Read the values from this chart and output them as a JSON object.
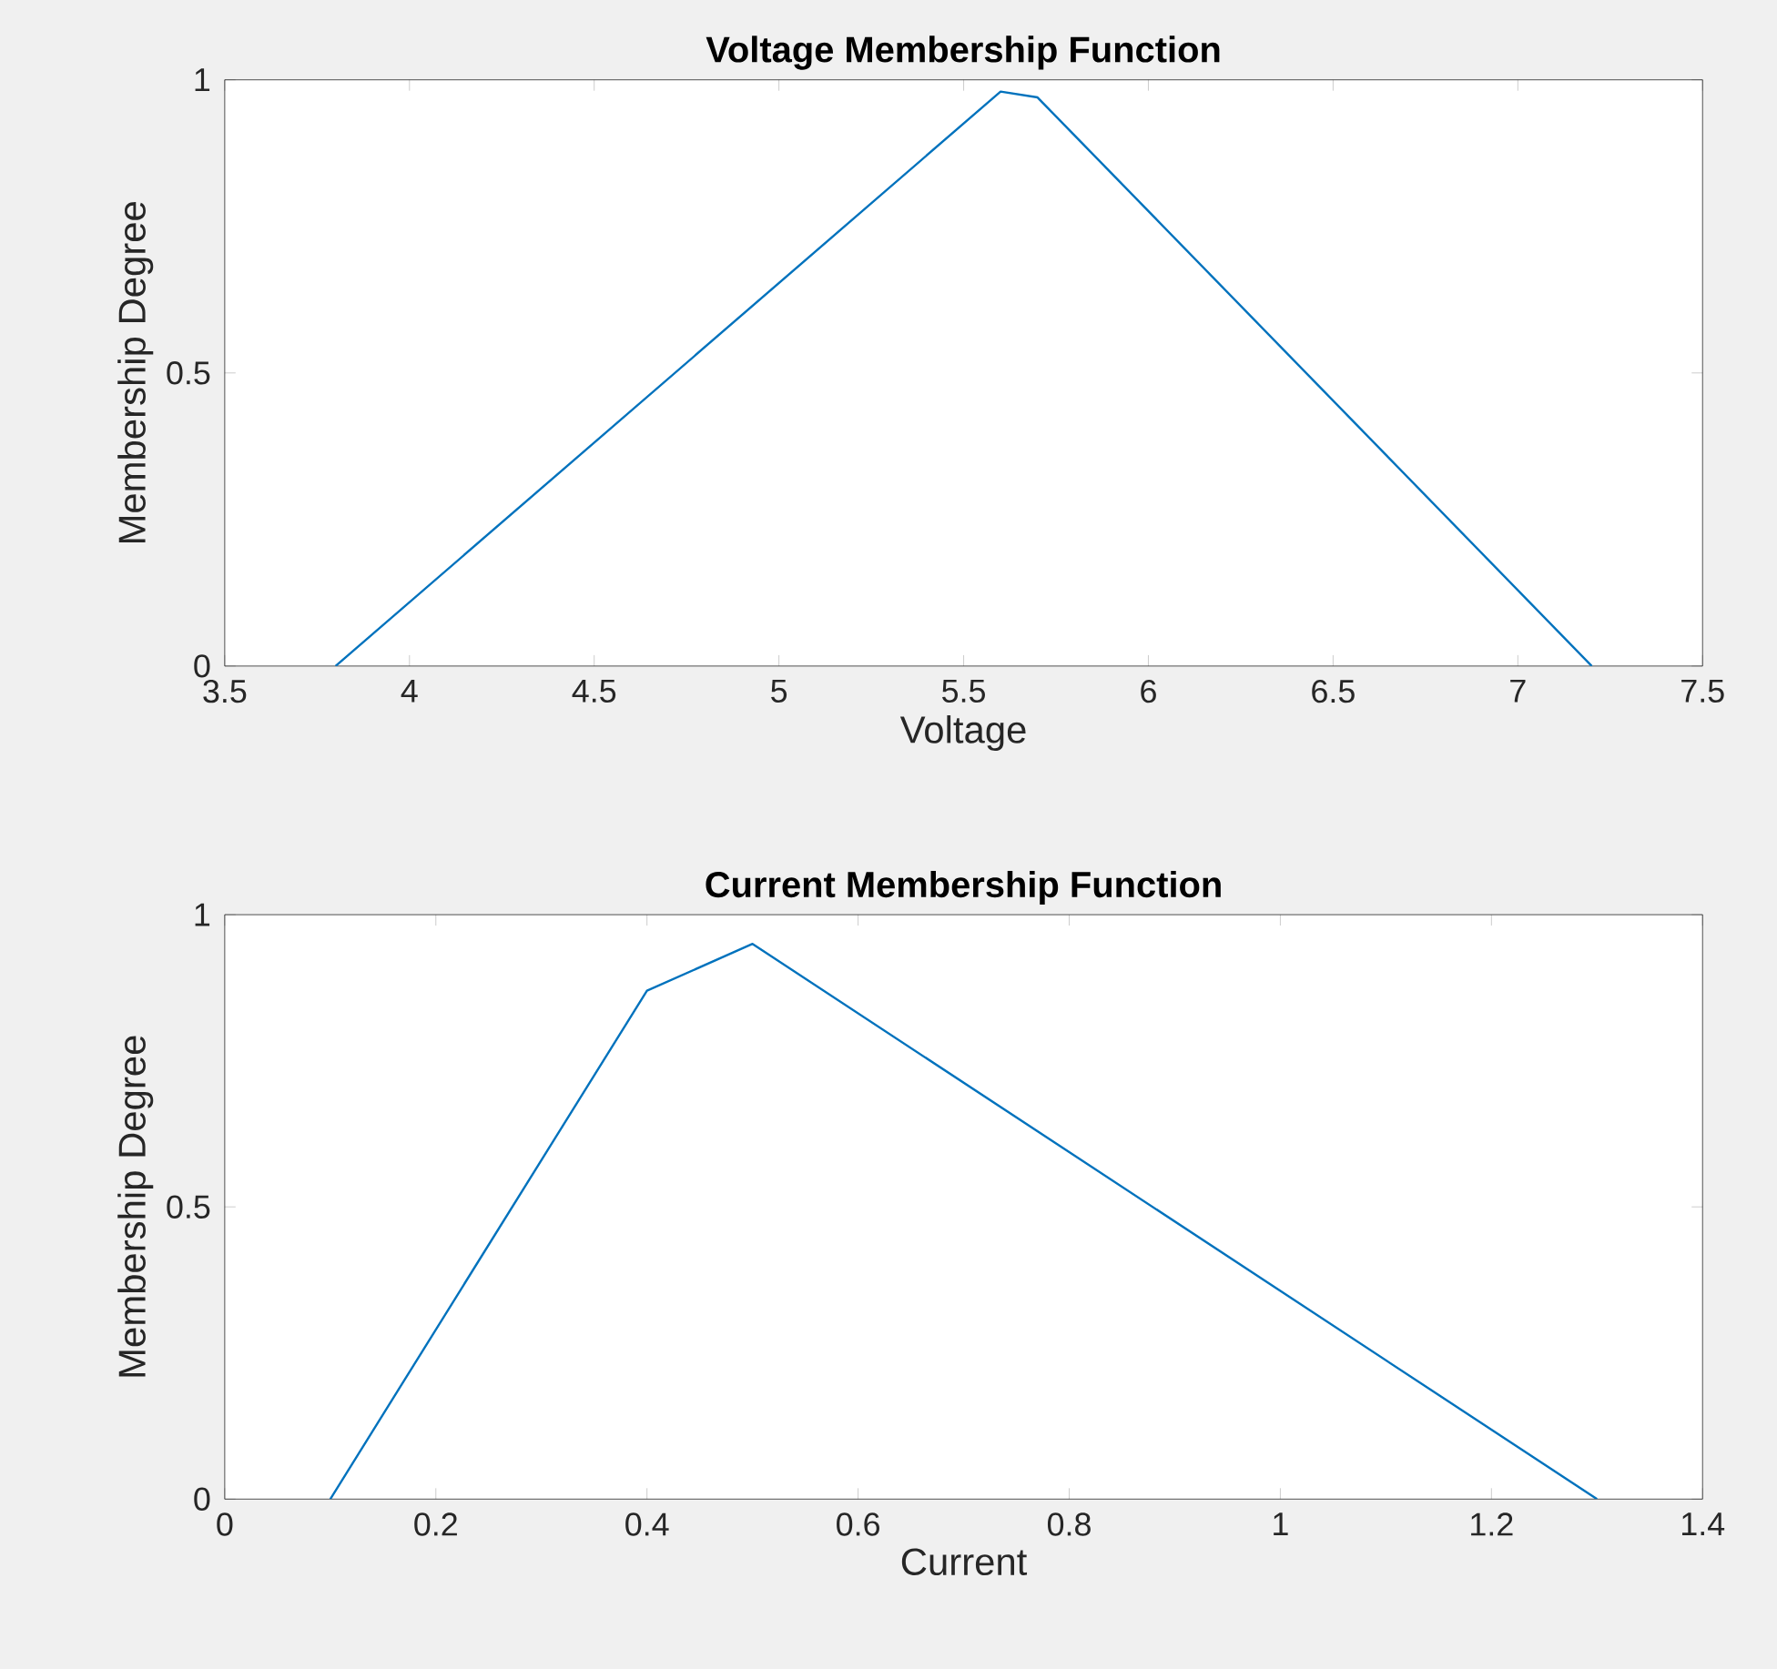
{
  "chart_data": [
    {
      "type": "line",
      "title": "Voltage Membership Function",
      "xlabel": "Voltage",
      "ylabel": "Membership Degree",
      "xlim": [
        3.5,
        7.5
      ],
      "ylim": [
        0,
        1
      ],
      "xticks": [
        3.5,
        4,
        4.5,
        5,
        5.5,
        6,
        6.5,
        7,
        7.5
      ],
      "yticks": [
        0,
        0.5,
        1
      ],
      "series": [
        {
          "x": [
            3.8,
            5.6,
            5.7,
            7.2
          ],
          "values": [
            0,
            0.98,
            0.97,
            0
          ],
          "color": "#0072bd"
        }
      ]
    },
    {
      "type": "line",
      "title": "Current Membership Function",
      "xlabel": "Current",
      "ylabel": "Membership Degree",
      "xlim": [
        0,
        1.4
      ],
      "ylim": [
        0,
        1
      ],
      "xticks": [
        0,
        0.2,
        0.4,
        0.6,
        0.8,
        1,
        1.2,
        1.4
      ],
      "yticks": [
        0,
        0.5,
        1
      ],
      "series": [
        {
          "x": [
            0.1,
            0.4,
            0.5,
            1.3
          ],
          "values": [
            0,
            0.87,
            0.95,
            0
          ],
          "color": "#0072bd"
        }
      ]
    }
  ]
}
